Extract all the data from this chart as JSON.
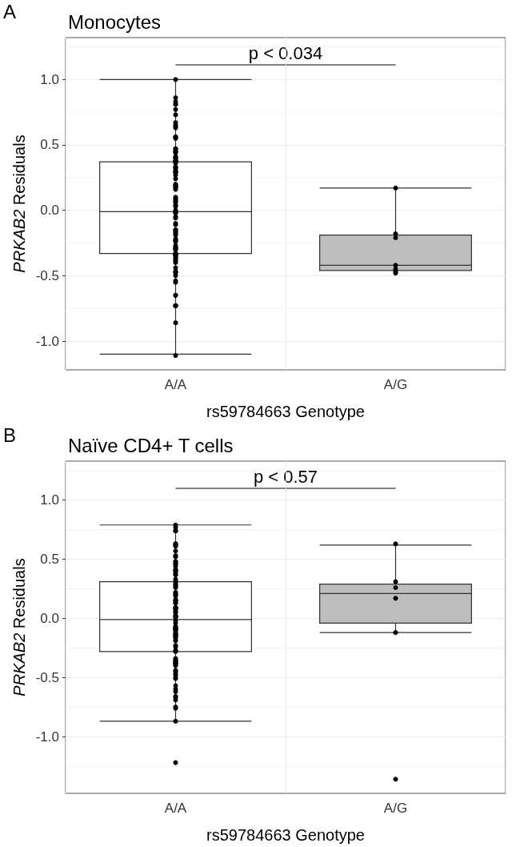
{
  "chart_data": [
    {
      "type": "box",
      "title": "Monocytes",
      "xlabel": "rs59784663 Genotype",
      "ylabel": "PRKAB2 Residuals",
      "categories": [
        "A/A",
        "A/G"
      ],
      "annotations": [
        "A",
        "p < 0.034"
      ],
      "grid": true,
      "marker": "circle",
      "ylim": [
        -1.22,
        1.32
      ],
      "yticks": [
        {
          "value": -1,
          "label": "-1.0"
        },
        {
          "value": -0.75,
          "label": null
        },
        {
          "value": -0.5,
          "label": "-0.5"
        },
        {
          "value": -0.25,
          "label": null
        },
        {
          "value": 0,
          "label": "0.0"
        },
        {
          "value": 0.25,
          "label": null
        },
        {
          "value": 0.5,
          "label": "0.5"
        },
        {
          "value": 0.75,
          "label": null
        },
        {
          "value": 1,
          "label": "1.0"
        },
        {
          "value": 1.25,
          "label": null
        }
      ],
      "series": [
        {
          "type": "box",
          "colors": [
            "#ffffff",
            "#bebebe"
          ],
          "boxes": [
            {
              "low": -1.1,
              "q1": -0.33,
              "median": -0.01,
              "q3": 0.37,
              "high": 1.0
            },
            {
              "low": -0.46,
              "q1": -0.46,
              "median": -0.42,
              "q3": -0.19,
              "high": 0.17
            }
          ]
        },
        {
          "type": "scatter",
          "color": "#000000",
          "x": [
            "A/A",
            "A/A",
            "A/A",
            "A/A",
            "A/A",
            "A/A",
            "A/A",
            "A/A",
            "A/A",
            "A/A",
            "A/A",
            "A/A",
            "A/A",
            "A/A",
            "A/A",
            "A/A",
            "A/A",
            "A/A",
            "A/A",
            "A/A",
            "A/A",
            "A/A",
            "A/A",
            "A/A",
            "A/A",
            "A/A",
            "A/A",
            "A/A",
            "A/A",
            "A/A",
            "A/A",
            "A/A",
            "A/A",
            "A/A",
            "A/A",
            "A/A",
            "A/A",
            "A/A",
            "A/A",
            "A/A",
            "A/A",
            "A/A",
            "A/A",
            "A/A",
            "A/A",
            "A/A",
            "A/A",
            "A/A",
            "A/A",
            "A/A",
            "A/A",
            "A/A",
            "A/A",
            "A/A",
            "A/A",
            "A/A",
            "A/A",
            "A/A",
            "A/A",
            "A/A",
            "A/A",
            "A/A",
            "A/A",
            "A/A",
            "A/A",
            "A/A",
            "A/A",
            "A/A",
            "A/A",
            "A/A",
            "A/A",
            "A/A",
            "A/A",
            "A/A",
            "A/A",
            "A/A",
            "A/A",
            "A/A",
            "A/A",
            "A/A",
            "A/A",
            "A/A",
            "A/A",
            "A/A",
            "A/A",
            "A/A",
            "A/A",
            "A/A",
            "A/A",
            "A/A",
            "A/A",
            "A/A",
            "A/A",
            "A/A",
            "A/A",
            "A/A",
            "A/A",
            "A/A",
            "A/A",
            "A/G",
            "A/G",
            "A/G",
            "A/G",
            "A/G",
            "A/G",
            "A/G"
          ],
          "values": [
            1.0,
            0.86,
            0.83,
            0.81,
            0.81,
            0.77,
            0.73,
            0.67,
            0.65,
            0.64,
            0.63,
            0.56,
            0.56,
            0.55,
            0.47,
            0.47,
            0.45,
            0.45,
            0.44,
            0.41,
            0.4,
            0.4,
            0.38,
            0.38,
            0.38,
            0.37,
            0.37,
            0.36,
            0.33,
            0.33,
            0.32,
            0.3,
            0.3,
            0.29,
            0.29,
            0.27,
            0.24,
            0.2,
            0.19,
            0.19,
            0.18,
            0.17,
            0.16,
            0.1,
            0.09,
            0.08,
            0.07,
            0.06,
            0.04,
            0.03,
            0.0,
            -0.01,
            -0.02,
            -0.02,
            -0.05,
            -0.06,
            -0.1,
            -0.11,
            -0.15,
            -0.15,
            -0.16,
            -0.17,
            -0.18,
            -0.19,
            -0.22,
            -0.23,
            -0.23,
            -0.24,
            -0.27,
            -0.28,
            -0.29,
            -0.29,
            -0.3,
            -0.3,
            -0.33,
            -0.33,
            -0.34,
            -0.34,
            -0.34,
            -0.35,
            -0.36,
            -0.37,
            -0.38,
            -0.39,
            -0.4,
            -0.44,
            -0.47,
            -0.47,
            -0.48,
            -0.5,
            -0.54,
            -0.55,
            -0.65,
            -0.65,
            -0.73,
            -0.73,
            -0.73,
            -0.86,
            -1.11,
            0.17,
            -0.18,
            -0.21,
            -0.42,
            -0.45,
            -0.47,
            -0.48
          ]
        }
      ]
    },
    {
      "type": "box",
      "title": "Naïve CD4+ T cells",
      "xlabel": "rs59784663 Genotype",
      "ylabel": "PRKAB2 Residuals",
      "categories": [
        "A/A",
        "A/G"
      ],
      "annotations": [
        "B",
        "p < 0.57"
      ],
      "grid": true,
      "marker": "circle",
      "ylim": [
        -1.48,
        1.33
      ],
      "yticks": [
        {
          "value": -1.25,
          "label": null
        },
        {
          "value": -1,
          "label": "-1.0"
        },
        {
          "value": -0.75,
          "label": null
        },
        {
          "value": -0.5,
          "label": "-0.5"
        },
        {
          "value": -0.25,
          "label": null
        },
        {
          "value": 0,
          "label": "0.0"
        },
        {
          "value": 0.25,
          "label": null
        },
        {
          "value": 0.5,
          "label": "0.5"
        },
        {
          "value": 0.75,
          "label": null
        },
        {
          "value": 1,
          "label": "1.0"
        },
        {
          "value": 1.25,
          "label": null
        }
      ],
      "series": [
        {
          "type": "box",
          "colors": [
            "#ffffff",
            "#bebebe"
          ],
          "boxes": [
            {
              "low": -0.87,
              "q1": -0.28,
              "median": -0.01,
              "q3": 0.31,
              "high": 0.79
            },
            {
              "low": -0.12,
              "q1": -0.04,
              "median": 0.21,
              "q3": 0.29,
              "high": 0.62
            }
          ]
        },
        {
          "type": "scatter",
          "color": "#000000",
          "x": [
            "A/A",
            "A/A",
            "A/A",
            "A/A",
            "A/A",
            "A/A",
            "A/A",
            "A/A",
            "A/A",
            "A/A",
            "A/A",
            "A/A",
            "A/A",
            "A/A",
            "A/A",
            "A/A",
            "A/A",
            "A/A",
            "A/A",
            "A/A",
            "A/A",
            "A/A",
            "A/A",
            "A/A",
            "A/A",
            "A/A",
            "A/A",
            "A/A",
            "A/A",
            "A/A",
            "A/A",
            "A/A",
            "A/A",
            "A/A",
            "A/A",
            "A/A",
            "A/A",
            "A/A",
            "A/A",
            "A/A",
            "A/A",
            "A/A",
            "A/A",
            "A/A",
            "A/A",
            "A/A",
            "A/A",
            "A/A",
            "A/A",
            "A/A",
            "A/A",
            "A/A",
            "A/A",
            "A/A",
            "A/A",
            "A/A",
            "A/A",
            "A/A",
            "A/A",
            "A/A",
            "A/A",
            "A/A",
            "A/A",
            "A/A",
            "A/A",
            "A/A",
            "A/A",
            "A/A",
            "A/A",
            "A/A",
            "A/A",
            "A/A",
            "A/A",
            "A/A",
            "A/A",
            "A/A",
            "A/A",
            "A/A",
            "A/A",
            "A/A",
            "A/A",
            "A/A",
            "A/A",
            "A/A",
            "A/A",
            "A/A",
            "A/A",
            "A/A",
            "A/A",
            "A/A",
            "A/A",
            "A/A",
            "A/A",
            "A/A",
            "A/A",
            "A/A",
            "A/A",
            "A/A",
            "A/G",
            "A/G",
            "A/G",
            "A/G",
            "A/G",
            "A/G"
          ],
          "values": [
            0.79,
            0.77,
            0.74,
            0.74,
            0.63,
            0.63,
            0.62,
            0.61,
            0.57,
            0.53,
            0.52,
            0.48,
            0.48,
            0.46,
            0.46,
            0.44,
            0.41,
            0.41,
            0.39,
            0.4,
            0.37,
            0.37,
            0.33,
            0.31,
            0.31,
            0.29,
            0.28,
            0.27,
            0.26,
            0.2,
            0.22,
            0.21,
            0.19,
            0.15,
            0.15,
            0.16,
            0.13,
            0.13,
            0.09,
            0.09,
            0.09,
            0.08,
            0.07,
            0.05,
            0.05,
            0.02,
            0.01,
            0.02,
            0.01,
            -0.02,
            -0.04,
            -0.07,
            -0.09,
            -0.08,
            -0.07,
            -0.09,
            -0.09,
            -0.11,
            -0.1,
            -0.14,
            -0.13,
            -0.13,
            -0.14,
            -0.16,
            -0.16,
            -0.15,
            -0.19,
            -0.18,
            -0.23,
            -0.24,
            -0.27,
            -0.28,
            -0.28,
            -0.35,
            -0.34,
            -0.37,
            -0.37,
            -0.36,
            -0.38,
            -0.38,
            -0.39,
            -0.4,
            -0.45,
            -0.44,
            -0.47,
            -0.51,
            -0.5,
            -0.48,
            -0.57,
            -0.6,
            -0.62,
            -0.66,
            -0.67,
            -0.69,
            -0.75,
            -0.76,
            -0.87,
            -1.22,
            0.63,
            0.31,
            0.26,
            0.17,
            -0.12,
            -1.36
          ]
        }
      ]
    }
  ]
}
